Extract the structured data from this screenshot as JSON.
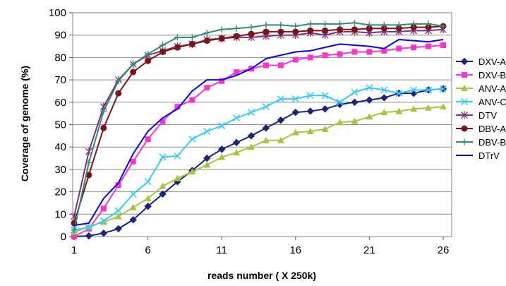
{
  "chart_data": {
    "type": "line",
    "xlabel": "reads number ( X 250k)",
    "ylabel": "Coverage of genome (%)",
    "xlim": [
      1,
      26
    ],
    "ylim": [
      0,
      100
    ],
    "x_ticks": [
      1,
      6,
      11,
      16,
      21,
      26
    ],
    "y_ticks": [
      0,
      10,
      20,
      30,
      40,
      50,
      60,
      70,
      80,
      90,
      100
    ],
    "grid": "horizontal",
    "legend_position": "right",
    "x": [
      1,
      2,
      3,
      4,
      5,
      6,
      7,
      8,
      9,
      10,
      11,
      12,
      13,
      14,
      15,
      16,
      17,
      18,
      19,
      20,
      21,
      22,
      23,
      24,
      25,
      26
    ],
    "series": [
      {
        "name": "DXV-A",
        "color": "#1a237e",
        "marker": "diamond",
        "values": [
          0,
          0.3,
          1.5,
          3.5,
          7.5,
          13.5,
          19,
          24.5,
          29.5,
          35,
          39,
          42,
          45,
          48.5,
          52,
          55.5,
          56,
          57,
          59,
          60,
          61,
          62,
          64,
          64,
          65.5,
          66
        ]
      },
      {
        "name": "DXV-B",
        "color": "#ff33cc",
        "marker": "square",
        "values": [
          0,
          3.5,
          12.5,
          23,
          33.5,
          43.5,
          51.5,
          58,
          61,
          66.5,
          69.5,
          73.5,
          75,
          76.5,
          76.5,
          79,
          80,
          81,
          81.5,
          82.5,
          82.5,
          83,
          84,
          84.5,
          85,
          85.5
        ]
      },
      {
        "name": "ANV-AB",
        "color": "#a4c639",
        "marker": "triangle",
        "values": [
          2,
          4.5,
          6.5,
          9,
          13,
          17,
          22.5,
          26,
          29,
          32,
          35.5,
          37.5,
          40,
          43,
          43,
          46.5,
          47,
          48,
          51,
          51.5,
          53.5,
          55.5,
          56,
          57,
          57.5,
          58
        ]
      },
      {
        "name": "ANV-CP",
        "color": "#33ccff",
        "marker": "x",
        "values": [
          3,
          4,
          7,
          11.5,
          19,
          24.5,
          35.5,
          36,
          43.5,
          47,
          49.5,
          53,
          55.5,
          58,
          61.5,
          61.5,
          63,
          63,
          60,
          64.5,
          66.5,
          65.5,
          64,
          65.5,
          65.5,
          66
        ]
      },
      {
        "name": "DTV",
        "color": "#80307f",
        "marker": "star",
        "values": [
          9,
          38,
          58,
          70,
          77,
          81,
          83,
          85,
          86,
          88,
          88.5,
          89,
          89,
          89.5,
          90,
          90,
          91,
          90,
          91.5,
          91.5,
          91,
          91.5,
          91.5,
          92,
          92,
          92.5
        ]
      },
      {
        "name": "DBV-A",
        "color": "#7b1416",
        "marker": "circle",
        "values": [
          6,
          27.5,
          48.5,
          64,
          73.5,
          78.5,
          82.5,
          84.5,
          86,
          87.5,
          88.5,
          89.5,
          90.5,
          91.5,
          91.5,
          91.5,
          92,
          92,
          92.5,
          92.5,
          93,
          93,
          93,
          93.5,
          93.5,
          94
        ]
      },
      {
        "name": "DBV-B",
        "color": "#2e8b7a",
        "marker": "plus",
        "values": [
          3,
          33,
          56,
          69.5,
          77,
          81.5,
          85.5,
          89,
          89,
          91,
          92.5,
          93,
          93.5,
          94.5,
          94.5,
          94,
          95,
          95,
          95,
          95.5,
          94.5,
          94.5,
          94.5,
          95,
          95,
          94
        ]
      },
      {
        "name": "DTrV",
        "color": "#0000ff",
        "marker": "none",
        "values": [
          5,
          6,
          17,
          24,
          37,
          47,
          53,
          57,
          65,
          70,
          70,
          72,
          75,
          79.5,
          81,
          82.5,
          83,
          84.5,
          86,
          85.5,
          85,
          84,
          88,
          87.5,
          87,
          88
        ]
      }
    ]
  }
}
